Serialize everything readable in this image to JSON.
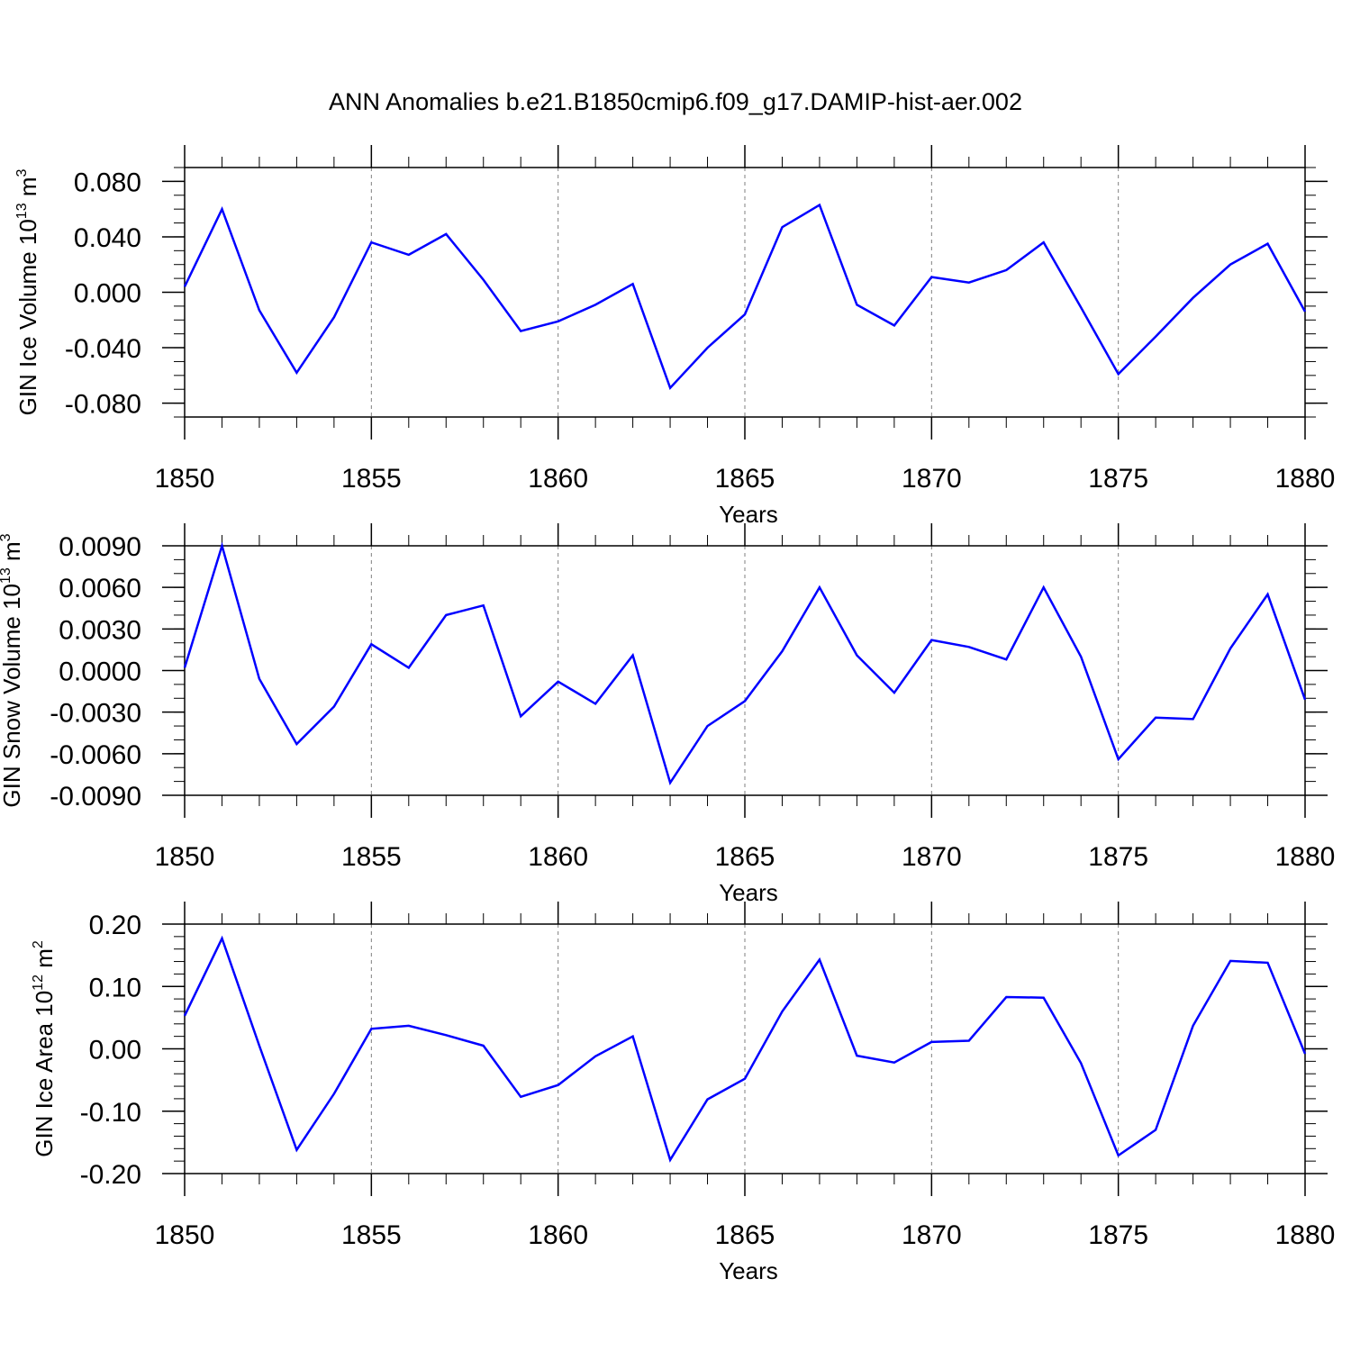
{
  "page": {
    "title": "ANN Anomalies b.e21.B1850cmip6.f09_g17.DAMIP-hist-aer.002"
  },
  "colors": {
    "line": "#0000ff",
    "axis": "#000000",
    "grid": "#7f7f7f"
  },
  "chart_data": [
    {
      "type": "line",
      "title": "ANN Anomalies b.e21.B1850cmip6.f09_g17.DAMIP-hist-aer.002",
      "xlabel": "Years",
      "ylabel_main": "GIN Ice Volume 10",
      "ylabel_exp": "13",
      "ylabel_unit": " m",
      "ylabel_unit_exp": "3",
      "xlim": [
        1850,
        1880
      ],
      "ylim": [
        -0.09,
        0.09
      ],
      "x_ticks": [
        "1850",
        "1855",
        "1860",
        "1865",
        "1870",
        "1875",
        "1880"
      ],
      "y_ticks": [
        {
          "value": 0.08,
          "label": "0.080"
        },
        {
          "value": 0.04,
          "label": "0.040"
        },
        {
          "value": 0.0,
          "label": "0.000"
        },
        {
          "value": -0.04,
          "label": "-0.040"
        },
        {
          "value": -0.08,
          "label": "-0.080"
        }
      ],
      "y_minor_step": 0.01,
      "grid": "dashed vertical at major x ticks",
      "series": [
        {
          "name": "GIN Ice Volume",
          "x": [
            1850,
            1851,
            1852,
            1853,
            1854,
            1855,
            1856,
            1857,
            1858,
            1859,
            1860,
            1861,
            1862,
            1863,
            1864,
            1865,
            1866,
            1867,
            1868,
            1869,
            1870,
            1871,
            1872,
            1873,
            1874,
            1875,
            1876,
            1877,
            1878,
            1879,
            1880
          ],
          "values": [
            0.004,
            0.06,
            -0.013,
            -0.058,
            -0.018,
            0.036,
            0.027,
            0.042,
            0.009,
            -0.028,
            -0.021,
            -0.009,
            0.006,
            -0.069,
            -0.04,
            -0.016,
            0.047,
            0.063,
            -0.009,
            -0.024,
            0.011,
            0.007,
            0.016,
            0.036,
            -0.011,
            -0.059,
            -0.032,
            -0.004,
            0.02,
            0.035,
            -0.014
          ]
        }
      ]
    },
    {
      "type": "line",
      "title": "",
      "xlabel": "Years",
      "ylabel_main": "GIN Snow Volume 10",
      "ylabel_exp": "13",
      "ylabel_unit": " m",
      "ylabel_unit_exp": "3",
      "xlim": [
        1850,
        1880
      ],
      "ylim": [
        -0.009,
        0.009
      ],
      "x_ticks": [
        "1850",
        "1855",
        "1860",
        "1865",
        "1870",
        "1875",
        "1880"
      ],
      "y_ticks": [
        {
          "value": 0.009,
          "label": "0.0090"
        },
        {
          "value": 0.006,
          "label": "0.0060"
        },
        {
          "value": 0.003,
          "label": "0.0030"
        },
        {
          "value": 0.0,
          "label": "0.0000"
        },
        {
          "value": -0.003,
          "label": "-0.0030"
        },
        {
          "value": -0.006,
          "label": "-0.0060"
        },
        {
          "value": -0.009,
          "label": "-0.0090"
        }
      ],
      "y_minor_step": 0.001,
      "grid": "dashed vertical at major x ticks",
      "series": [
        {
          "name": "GIN Snow Volume",
          "x": [
            1850,
            1851,
            1852,
            1853,
            1854,
            1855,
            1856,
            1857,
            1858,
            1859,
            1860,
            1861,
            1862,
            1863,
            1864,
            1865,
            1866,
            1867,
            1868,
            1869,
            1870,
            1871,
            1872,
            1873,
            1874,
            1875,
            1876,
            1877,
            1878,
            1879,
            1880
          ],
          "values": [
            0.0002,
            0.009,
            -0.0006,
            -0.0053,
            -0.0026,
            0.0019,
            0.0002,
            0.004,
            0.0047,
            -0.0033,
            -0.0008,
            -0.0024,
            0.0011,
            -0.0081,
            -0.004,
            -0.0022,
            0.0014,
            0.006,
            0.0011,
            -0.0016,
            0.0022,
            0.0017,
            0.0008,
            0.006,
            0.001,
            -0.0064,
            -0.0034,
            -0.0035,
            0.0016,
            0.0055,
            -0.0021
          ]
        }
      ]
    },
    {
      "type": "line",
      "title": "",
      "xlabel": "Years",
      "ylabel_main": "GIN Ice Area 10",
      "ylabel_exp": "12",
      "ylabel_unit": " m",
      "ylabel_unit_exp": "2",
      "xlim": [
        1850,
        1880
      ],
      "ylim": [
        -0.2,
        0.2
      ],
      "x_ticks": [
        "1850",
        "1855",
        "1860",
        "1865",
        "1870",
        "1875",
        "1880"
      ],
      "y_ticks": [
        {
          "value": 0.2,
          "label": "0.20"
        },
        {
          "value": 0.1,
          "label": "0.10"
        },
        {
          "value": 0.0,
          "label": "0.00"
        },
        {
          "value": -0.1,
          "label": "-0.10"
        },
        {
          "value": -0.2,
          "label": "-0.20"
        }
      ],
      "y_minor_step": 0.02,
      "grid": "dashed vertical at major x ticks",
      "series": [
        {
          "name": "GIN Ice Area",
          "x": [
            1850,
            1851,
            1852,
            1853,
            1854,
            1855,
            1856,
            1857,
            1858,
            1859,
            1860,
            1861,
            1862,
            1863,
            1864,
            1865,
            1866,
            1867,
            1868,
            1869,
            1870,
            1871,
            1872,
            1873,
            1874,
            1875,
            1876,
            1877,
            1878,
            1879,
            1880
          ],
          "values": [
            0.053,
            0.177,
            0.005,
            -0.162,
            -0.072,
            0.032,
            0.037,
            0.022,
            0.005,
            -0.077,
            -0.058,
            -0.012,
            0.02,
            -0.178,
            -0.081,
            -0.048,
            0.06,
            0.143,
            -0.011,
            -0.022,
            0.011,
            0.013,
            0.083,
            0.082,
            -0.023,
            -0.171,
            -0.13,
            0.037,
            0.141,
            0.138,
            -0.008
          ]
        }
      ]
    }
  ]
}
